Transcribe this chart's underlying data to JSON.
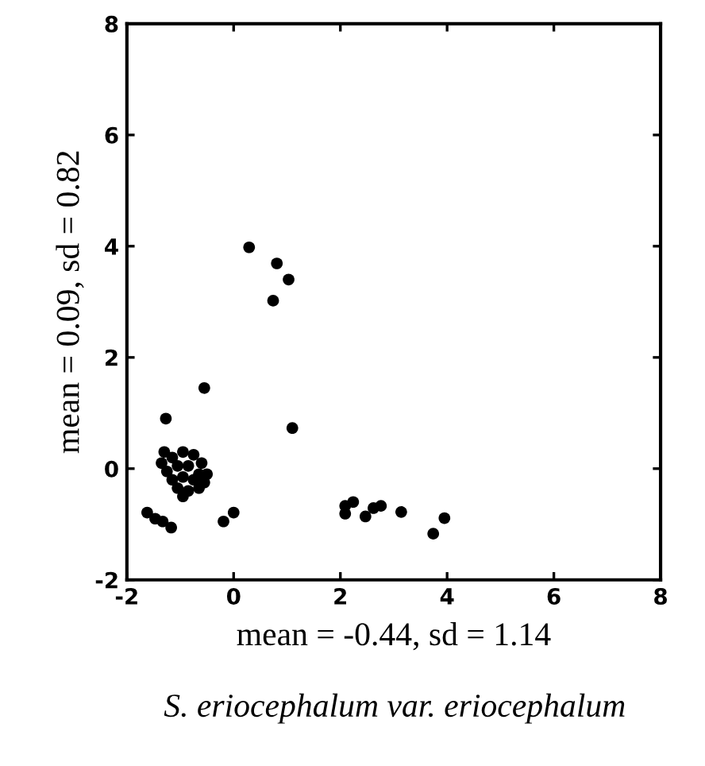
{
  "chart_data": {
    "type": "scatter",
    "xlabel": "mean = -0.44, sd = 1.14",
    "ylabel": "mean = 0.09, sd = 0.82",
    "annotations": [
      "S. eriocephalum var. eriocephalum"
    ],
    "xlim": [
      -2,
      8
    ],
    "ylim": [
      -2,
      8
    ],
    "xticks": [
      -2,
      0,
      2,
      4,
      6,
      8
    ],
    "yticks": [
      -2,
      0,
      2,
      4,
      6,
      8
    ],
    "grid": false,
    "marker": "circle",
    "series": [
      {
        "color": "#000000",
        "x": [
          0.29,
          0.81,
          1.03,
          0.74,
          -0.55,
          1.1,
          -1.27,
          -1.62,
          -1.47,
          -1.33,
          -1.17,
          -0.19,
          0.0,
          2.09,
          2.24,
          2.09,
          2.47,
          2.62,
          2.76,
          3.14,
          3.95,
          3.74,
          -1.35,
          -1.3,
          -1.15,
          -0.95,
          -0.75,
          -0.6,
          -0.5,
          -1.25,
          -1.05,
          -0.85,
          -0.65,
          -1.15,
          -0.95,
          -0.75,
          -0.55,
          -1.05,
          -0.85,
          -0.65,
          -0.95
        ],
        "values": [
          3.98,
          3.69,
          3.4,
          3.02,
          1.45,
          0.73,
          0.9,
          -0.79,
          -0.9,
          -0.95,
          -1.06,
          -0.95,
          -0.79,
          -0.67,
          -0.6,
          -0.81,
          -0.86,
          -0.71,
          -0.67,
          -0.78,
          -0.89,
          -1.17,
          0.1,
          0.3,
          0.2,
          0.3,
          0.25,
          0.1,
          -0.1,
          -0.05,
          0.05,
          0.05,
          -0.1,
          -0.2,
          -0.15,
          -0.2,
          -0.25,
          -0.35,
          -0.4,
          -0.35,
          -0.5
        ]
      }
    ]
  }
}
